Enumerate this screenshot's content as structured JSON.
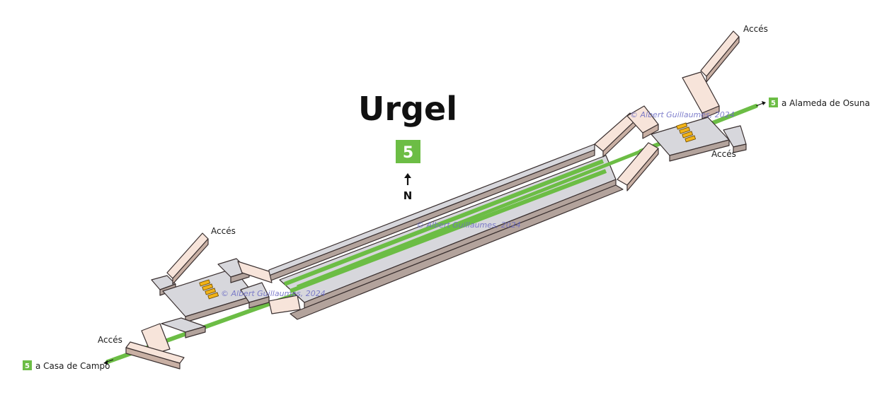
{
  "station": {
    "name": "Urgel",
    "line": "5",
    "line_color": "#6cbd45",
    "north_label": "N"
  },
  "destinations": {
    "east": {
      "line": "5",
      "label": "a Alameda de Osuna"
    },
    "west": {
      "line": "5",
      "label": "a Casa de Campo"
    }
  },
  "access_labels": {
    "northwest": "Accés",
    "southwest": "Accés",
    "northeast": "Accés",
    "east": "Accés"
  },
  "credit": "© Albert Guillaumes, 2024",
  "colors": {
    "floor": "#d7d7dc",
    "wall_side": "#b3a39c",
    "stair_floor": "#f7e4da",
    "stair_side": "#c9b0a4",
    "escalator": "#f2b318",
    "track": "#6cbd45",
    "outline": "#3a3030"
  }
}
